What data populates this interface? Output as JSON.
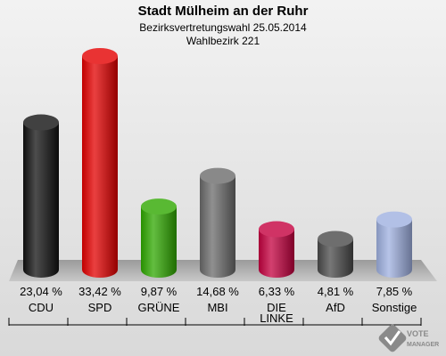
{
  "chart_data": {
    "type": "bar",
    "title": "Stadt Mülheim an der Ruhr",
    "subtitle": "Bezirksvertretungswahl 25.05.2014",
    "subtitle2": "Wahlbezirk 221",
    "categories": [
      "CDU",
      "SPD",
      "GRÜNE",
      "MBI",
      "DIE LINKE",
      "AfD",
      "Sonstige"
    ],
    "category_lines": [
      [
        "CDU"
      ],
      [
        "SPD"
      ],
      [
        "GRÜNE"
      ],
      [
        "MBI"
      ],
      [
        "DIE",
        "LINKE"
      ],
      [
        "AfD"
      ],
      [
        "Sonstige"
      ]
    ],
    "values": [
      23.04,
      33.42,
      9.87,
      14.68,
      6.33,
      4.81,
      7.85
    ],
    "value_labels": [
      "23,04 %",
      "33,42 %",
      "9,87 %",
      "14,68 %",
      "6,33 %",
      "4,81 %",
      "7,85 %"
    ],
    "colors": [
      "#111111",
      "#e30000",
      "#2fa800",
      "#6b6b6b",
      "#c4003f",
      "#4a4a4a",
      "#9fb0e0"
    ],
    "ylim": [
      0,
      33.42
    ],
    "grid": false,
    "legend": "none"
  },
  "logo": {
    "text": "VOTE MANAGER"
  }
}
